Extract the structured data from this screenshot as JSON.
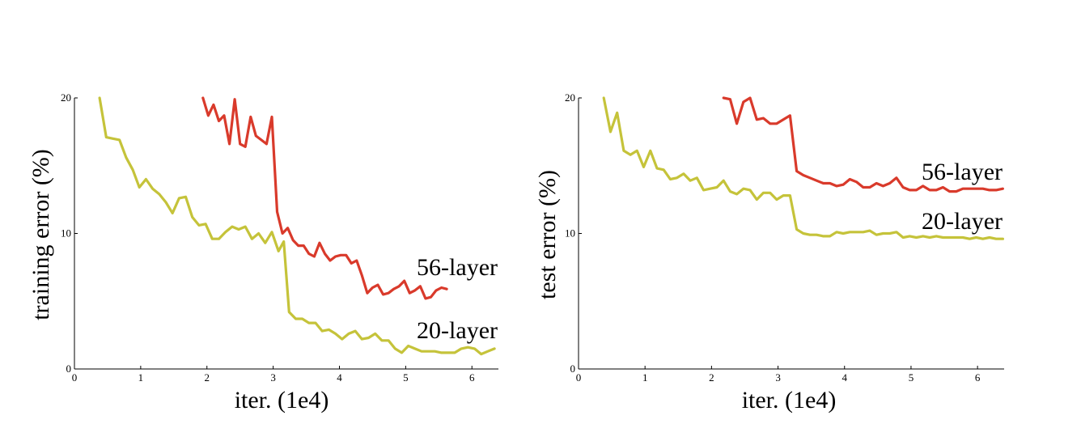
{
  "chart_data": [
    {
      "type": "line",
      "title": "",
      "xlabel": "iter. (1e4)",
      "ylabel": "training error (%)",
      "xlim": [
        0,
        6.4
      ],
      "ylim": [
        0,
        20
      ],
      "x_ticks": [
        "0",
        "1",
        "2",
        "3",
        "4",
        "5",
        "6"
      ],
      "y_ticks": [
        "0",
        "10",
        "20"
      ],
      "grid": false,
      "series": [
        {
          "name": "56-layer",
          "color": "#d93a2b",
          "points": [
            [
              1.94,
              20.0
            ],
            [
              2.02,
              18.7
            ],
            [
              2.1,
              19.5
            ],
            [
              2.18,
              18.3
            ],
            [
              2.26,
              18.7
            ],
            [
              2.34,
              16.6
            ],
            [
              2.42,
              19.9
            ],
            [
              2.5,
              16.6
            ],
            [
              2.58,
              16.4
            ],
            [
              2.66,
              18.6
            ],
            [
              2.74,
              17.2
            ],
            [
              2.82,
              16.9
            ],
            [
              2.9,
              16.6
            ],
            [
              2.98,
              18.6
            ],
            [
              3.06,
              11.6
            ],
            [
              3.14,
              10.0
            ],
            [
              3.22,
              10.4
            ],
            [
              3.3,
              9.5
            ],
            [
              3.38,
              9.1
            ],
            [
              3.46,
              9.1
            ],
            [
              3.54,
              8.5
            ],
            [
              3.62,
              8.3
            ],
            [
              3.7,
              9.3
            ],
            [
              3.78,
              8.5
            ],
            [
              3.86,
              8.0
            ],
            [
              3.94,
              8.3
            ],
            [
              4.02,
              8.4
            ],
            [
              4.1,
              8.4
            ],
            [
              4.18,
              7.8
            ],
            [
              4.26,
              8.0
            ],
            [
              4.34,
              6.9
            ],
            [
              4.42,
              5.6
            ],
            [
              4.5,
              6.0
            ],
            [
              4.58,
              6.2
            ],
            [
              4.66,
              5.5
            ],
            [
              4.74,
              5.6
            ],
            [
              4.82,
              5.9
            ],
            [
              4.9,
              6.1
            ],
            [
              4.98,
              6.5
            ],
            [
              5.06,
              5.6
            ],
            [
              5.14,
              5.8
            ],
            [
              5.22,
              6.1
            ],
            [
              5.3,
              5.2
            ],
            [
              5.38,
              5.3
            ],
            [
              5.46,
              5.8
            ],
            [
              5.54,
              6.0
            ],
            [
              5.62,
              5.9
            ]
          ]
        },
        {
          "name": "20-layer",
          "color": "#c5c33a",
          "points": [
            [
              0.38,
              20.0
            ],
            [
              0.48,
              17.1
            ],
            [
              0.58,
              17.0
            ],
            [
              0.68,
              16.9
            ],
            [
              0.78,
              15.6
            ],
            [
              0.88,
              14.7
            ],
            [
              0.98,
              13.4
            ],
            [
              1.08,
              14.0
            ],
            [
              1.18,
              13.3
            ],
            [
              1.28,
              12.9
            ],
            [
              1.38,
              12.3
            ],
            [
              1.48,
              11.5
            ],
            [
              1.58,
              12.6
            ],
            [
              1.68,
              12.7
            ],
            [
              1.78,
              11.2
            ],
            [
              1.88,
              10.6
            ],
            [
              1.98,
              10.7
            ],
            [
              2.08,
              9.6
            ],
            [
              2.18,
              9.6
            ],
            [
              2.28,
              10.1
            ],
            [
              2.38,
              10.5
            ],
            [
              2.48,
              10.3
            ],
            [
              2.58,
              10.5
            ],
            [
              2.68,
              9.6
            ],
            [
              2.78,
              10.0
            ],
            [
              2.88,
              9.3
            ],
            [
              2.98,
              10.1
            ],
            [
              3.08,
              8.7
            ],
            [
              3.16,
              9.4
            ],
            [
              3.24,
              4.2
            ],
            [
              3.34,
              3.7
            ],
            [
              3.44,
              3.7
            ],
            [
              3.54,
              3.4
            ],
            [
              3.64,
              3.4
            ],
            [
              3.74,
              2.8
            ],
            [
              3.84,
              2.9
            ],
            [
              3.94,
              2.6
            ],
            [
              4.04,
              2.2
            ],
            [
              4.14,
              2.6
            ],
            [
              4.24,
              2.8
            ],
            [
              4.34,
              2.2
            ],
            [
              4.44,
              2.3
            ],
            [
              4.54,
              2.6
            ],
            [
              4.64,
              2.1
            ],
            [
              4.74,
              2.1
            ],
            [
              4.84,
              1.5
            ],
            [
              4.94,
              1.2
            ],
            [
              5.04,
              1.7
            ],
            [
              5.14,
              1.5
            ],
            [
              5.24,
              1.3
            ],
            [
              5.34,
              1.3
            ],
            [
              5.44,
              1.3
            ],
            [
              5.54,
              1.2
            ],
            [
              5.64,
              1.2
            ],
            [
              5.74,
              1.2
            ],
            [
              5.84,
              1.5
            ],
            [
              5.94,
              1.6
            ],
            [
              6.04,
              1.5
            ],
            [
              6.14,
              1.1
            ],
            [
              6.24,
              1.3
            ],
            [
              6.34,
              1.5
            ]
          ]
        }
      ]
    },
    {
      "type": "line",
      "title": "",
      "xlabel": "iter. (1e4)",
      "ylabel": "test error (%)",
      "xlim": [
        0,
        6.4
      ],
      "ylim": [
        0,
        20
      ],
      "x_ticks": [
        "0",
        "1",
        "2",
        "3",
        "4",
        "5",
        "6"
      ],
      "y_ticks": [
        "0",
        "10",
        "20"
      ],
      "grid": false,
      "series": [
        {
          "name": "56-layer",
          "color": "#d93a2b",
          "points": [
            [
              2.18,
              20.0
            ],
            [
              2.28,
              19.9
            ],
            [
              2.38,
              18.1
            ],
            [
              2.48,
              19.7
            ],
            [
              2.58,
              20.0
            ],
            [
              2.68,
              18.4
            ],
            [
              2.78,
              18.5
            ],
            [
              2.88,
              18.1
            ],
            [
              2.98,
              18.1
            ],
            [
              3.08,
              18.4
            ],
            [
              3.18,
              18.7
            ],
            [
              3.28,
              14.6
            ],
            [
              3.38,
              14.3
            ],
            [
              3.48,
              14.1
            ],
            [
              3.58,
              13.9
            ],
            [
              3.68,
              13.7
            ],
            [
              3.78,
              13.7
            ],
            [
              3.88,
              13.5
            ],
            [
              3.98,
              13.6
            ],
            [
              4.08,
              14.0
            ],
            [
              4.18,
              13.8
            ],
            [
              4.28,
              13.4
            ],
            [
              4.38,
              13.4
            ],
            [
              4.48,
              13.7
            ],
            [
              4.58,
              13.5
            ],
            [
              4.68,
              13.7
            ],
            [
              4.78,
              14.1
            ],
            [
              4.88,
              13.4
            ],
            [
              4.98,
              13.2
            ],
            [
              5.08,
              13.2
            ],
            [
              5.18,
              13.5
            ],
            [
              5.28,
              13.2
            ],
            [
              5.38,
              13.2
            ],
            [
              5.48,
              13.4
            ],
            [
              5.58,
              13.1
            ],
            [
              5.68,
              13.1
            ],
            [
              5.78,
              13.3
            ],
            [
              5.88,
              13.3
            ],
            [
              5.98,
              13.3
            ],
            [
              6.08,
              13.3
            ],
            [
              6.18,
              13.2
            ],
            [
              6.28,
              13.2
            ],
            [
              6.38,
              13.3
            ]
          ]
        },
        {
          "name": "20-layer",
          "color": "#c5c33a",
          "points": [
            [
              0.38,
              20.0
            ],
            [
              0.48,
              17.5
            ],
            [
              0.58,
              18.9
            ],
            [
              0.68,
              16.1
            ],
            [
              0.78,
              15.8
            ],
            [
              0.88,
              16.1
            ],
            [
              0.98,
              14.9
            ],
            [
              1.08,
              16.1
            ],
            [
              1.18,
              14.8
            ],
            [
              1.28,
              14.7
            ],
            [
              1.38,
              14.0
            ],
            [
              1.48,
              14.1
            ],
            [
              1.58,
              14.4
            ],
            [
              1.68,
              13.9
            ],
            [
              1.78,
              14.1
            ],
            [
              1.88,
              13.2
            ],
            [
              1.98,
              13.3
            ],
            [
              2.08,
              13.4
            ],
            [
              2.18,
              13.9
            ],
            [
              2.28,
              13.1
            ],
            [
              2.38,
              12.9
            ],
            [
              2.48,
              13.3
            ],
            [
              2.58,
              13.2
            ],
            [
              2.68,
              12.5
            ],
            [
              2.78,
              13.0
            ],
            [
              2.88,
              13.0
            ],
            [
              2.98,
              12.5
            ],
            [
              3.08,
              12.8
            ],
            [
              3.18,
              12.8
            ],
            [
              3.28,
              10.3
            ],
            [
              3.38,
              10.0
            ],
            [
              3.48,
              9.9
            ],
            [
              3.58,
              9.9
            ],
            [
              3.68,
              9.8
            ],
            [
              3.78,
              9.8
            ],
            [
              3.88,
              10.1
            ],
            [
              3.98,
              10.0
            ],
            [
              4.08,
              10.1
            ],
            [
              4.18,
              10.1
            ],
            [
              4.28,
              10.1
            ],
            [
              4.38,
              10.2
            ],
            [
              4.48,
              9.9
            ],
            [
              4.58,
              10.0
            ],
            [
              4.68,
              10.0
            ],
            [
              4.78,
              10.1
            ],
            [
              4.88,
              9.7
            ],
            [
              4.98,
              9.8
            ],
            [
              5.08,
              9.7
            ],
            [
              5.18,
              9.8
            ],
            [
              5.28,
              9.7
            ],
            [
              5.38,
              9.8
            ],
            [
              5.48,
              9.7
            ],
            [
              5.58,
              9.7
            ],
            [
              5.68,
              9.7
            ],
            [
              5.78,
              9.7
            ],
            [
              5.88,
              9.6
            ],
            [
              5.98,
              9.7
            ],
            [
              6.08,
              9.6
            ],
            [
              6.18,
              9.7
            ],
            [
              6.28,
              9.6
            ],
            [
              6.38,
              9.6
            ]
          ]
        }
      ]
    }
  ]
}
